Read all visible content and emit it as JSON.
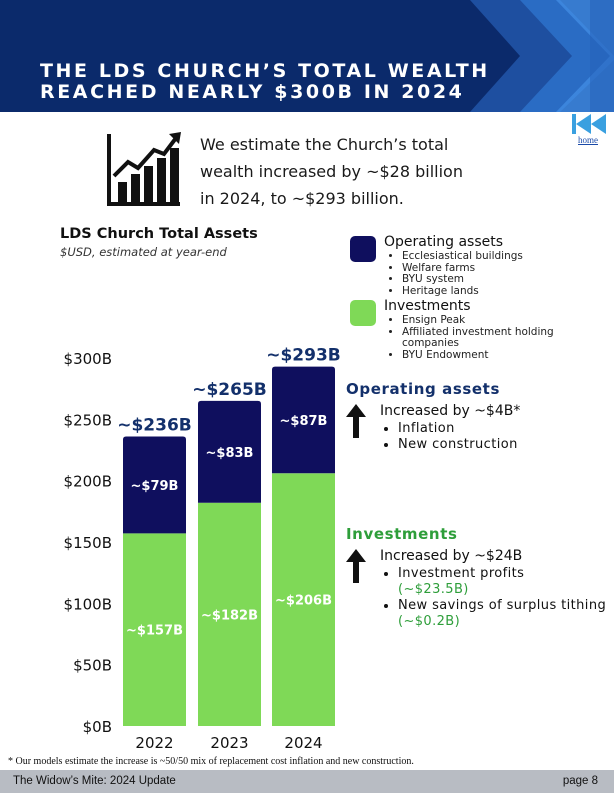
{
  "header": {
    "title_line1": "THE LDS CHURCH’S TOTAL WEALTH",
    "title_line2": "REACHED NEARLY $300B IN 2024"
  },
  "nav": {
    "home_label": "home"
  },
  "summary": {
    "line1": "We estimate the Church’s total",
    "line2": "wealth increased by ~$28 billion",
    "line3": "in 2024, to ~$293 billion."
  },
  "legend": {
    "operating": {
      "name": "Operating assets",
      "items": [
        "Ecclesiastical buildings",
        "Welfare farms",
        "BYU system",
        "Heritage lands"
      ]
    },
    "investments": {
      "name": "Investments",
      "items": [
        "Ensign Peak",
        "Affiliated investment holding companies",
        "BYU Endowment"
      ]
    }
  },
  "side": {
    "operating": {
      "heading": "Operating assets",
      "line": "Increased by ~$4B*",
      "bullets": [
        "Inflation",
        "New construction"
      ]
    },
    "investments": {
      "heading": "Investments",
      "line": "Increased by ~$24B",
      "bullet1_text": "Investment profits",
      "bullet1_value": "(~$23.5B)",
      "bullet2_text": "New savings of surplus tithing",
      "bullet2_value": "(~$0.2B)"
    }
  },
  "colors": {
    "navy": "#0f0f5e",
    "green": "#7fd957",
    "header_blue": "#0b2a6b",
    "accent_green": "#2e9e3a",
    "heading_navy": "#13306b"
  },
  "chart_data": {
    "type": "bar",
    "stacked": true,
    "title": "LDS Church Total Assets",
    "subtitle": "$USD, estimated at year-end",
    "categories": [
      "2022",
      "2023",
      "2024"
    ],
    "series": [
      {
        "name": "Investments",
        "values": [
          157,
          182,
          206
        ],
        "labels": [
          "~$157B",
          "~$182B",
          "~$206B"
        ]
      },
      {
        "name": "Operating assets",
        "values": [
          79,
          83,
          87
        ],
        "labels": [
          "~$79B",
          "~$83B",
          "~$87B"
        ]
      }
    ],
    "totals": [
      236,
      265,
      293
    ],
    "total_labels": [
      "~$236B",
      "~$265B",
      "~$293B"
    ],
    "yticks": [
      0,
      50,
      100,
      150,
      200,
      250,
      300
    ],
    "ytick_labels": [
      "$0B",
      "$50B",
      "$100B",
      "$150B",
      "$200B",
      "$250B",
      "$300B"
    ],
    "ylim": [
      0,
      300
    ]
  },
  "footnote": "* Our models estimate the increase is ~50/50 mix of replacement cost inflation and new construction.",
  "footer": {
    "left": "The Widow’s Mite: 2024 Update",
    "right": "page 8"
  }
}
